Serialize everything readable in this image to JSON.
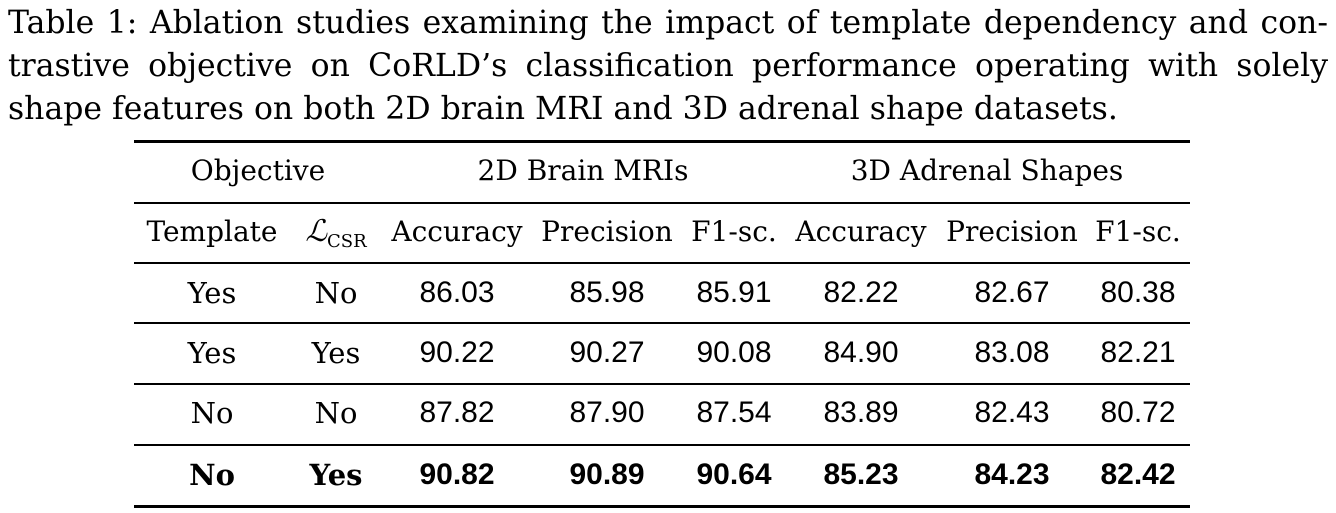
{
  "caption": {
    "lines": [
      "Table 1: Ablation studies examining the impact of template dependency and con-",
      "trastive objective on CoRLD’s classification performance operating with solely",
      "shape features on both 2D brain MRI and 3D adrenal shape datasets."
    ]
  },
  "table": {
    "group_headers": [
      "Objective",
      "2D Brain MRIs",
      "3D Adrenal Shapes"
    ],
    "sub_headers": {
      "template": "Template",
      "loss_symbol": "ℒ",
      "loss_subscript": "CSR",
      "metrics": [
        "Accuracy",
        "Precision",
        "F1-sc.",
        "Accuracy",
        "Precision",
        "F1-sc."
      ]
    },
    "rows": [
      {
        "cells": [
          "Yes",
          "No",
          "86.03",
          "85.98",
          "85.91",
          "82.22",
          "82.67",
          "80.38"
        ],
        "bold": false
      },
      {
        "cells": [
          "Yes",
          "Yes",
          "90.22",
          "90.27",
          "90.08",
          "84.90",
          "83.08",
          "82.21"
        ],
        "bold": false
      },
      {
        "cells": [
          "No",
          "No",
          "87.82",
          "87.90",
          "87.54",
          "83.89",
          "82.43",
          "80.72"
        ],
        "bold": false
      },
      {
        "cells": [
          "No",
          "Yes",
          "90.82",
          "90.89",
          "90.64",
          "85.23",
          "84.23",
          "82.42"
        ],
        "bold": true
      }
    ]
  }
}
